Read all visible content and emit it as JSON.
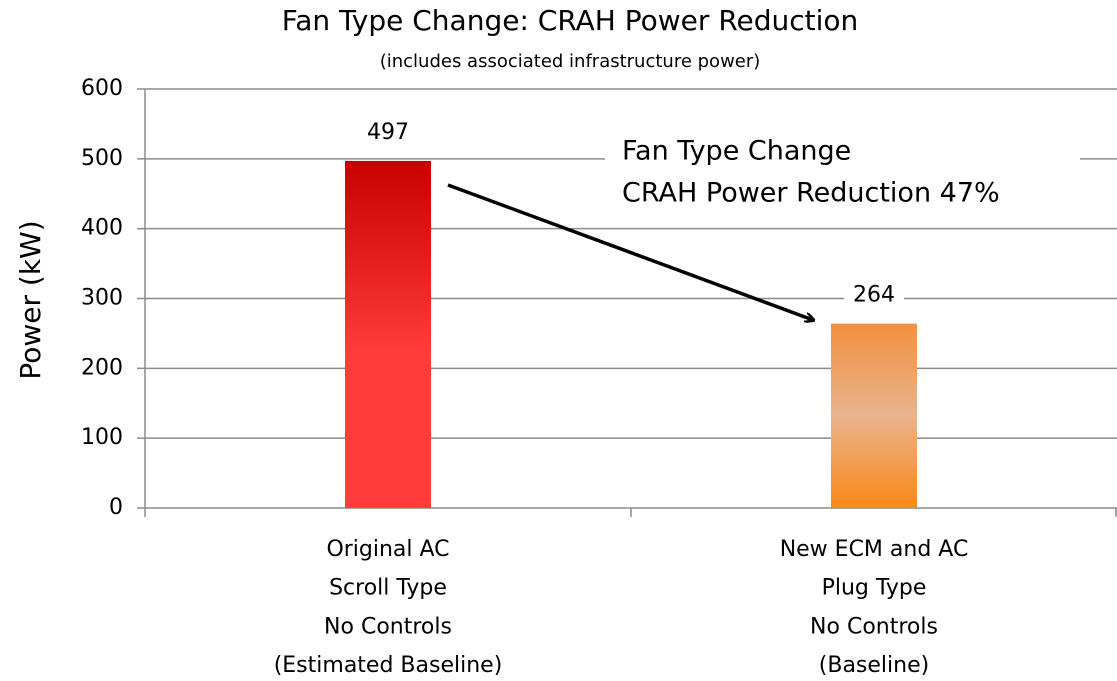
{
  "chart_data": {
    "type": "bar",
    "title": "Fan Type Change: CRAH Power Reduction",
    "subtitle": "(includes associated infrastructure power)",
    "y_label": "Power (kW)",
    "categories": [
      [
        "Original AC",
        "Scroll Type",
        "No Controls",
        "(Estimated Baseline)"
      ],
      [
        "New ECM and AC",
        "Plug Type",
        "No Controls",
        "(Baseline)"
      ]
    ],
    "values": [
      497,
      264
    ],
    "colors": [
      "#ff3b3b",
      "#f39040"
    ],
    "ylim": [
      0,
      600
    ],
    "yticks": [
      0,
      100,
      200,
      300,
      400,
      500,
      600
    ],
    "grid": true,
    "annotation": [
      "Fan Type Change",
      "CRAH Power  Reduction 47%"
    ]
  }
}
